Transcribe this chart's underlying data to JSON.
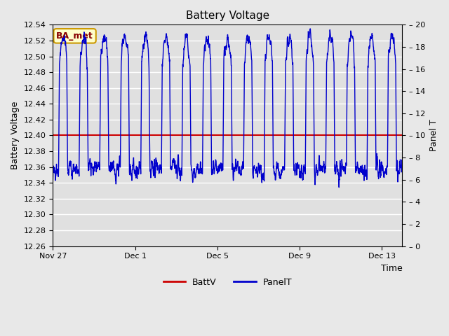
{
  "title": "Battery Voltage",
  "xlabel": "Time",
  "ylabel_left": "Battery Voltage",
  "ylabel_right": "Panel T",
  "ylim_left": [
    12.26,
    12.54
  ],
  "ylim_right": [
    0,
    20
  ],
  "yticks_left": [
    12.26,
    12.28,
    12.3,
    12.32,
    12.34,
    12.36,
    12.38,
    12.4,
    12.42,
    12.44,
    12.46,
    12.48,
    12.5,
    12.52,
    12.54
  ],
  "yticks_right": [
    0,
    2,
    4,
    6,
    8,
    10,
    12,
    14,
    16,
    18,
    20
  ],
  "batt_v": 12.4,
  "batt_color": "#cc0000",
  "panel_color": "#0000cc",
  "bg_color": "#e8e8e8",
  "plot_bg_color": "#e0e0e0",
  "grid_color": "#ffffff",
  "annotation_text": "BA_met",
  "annotation_bg": "#ffffcc",
  "annotation_border": "#cc9900",
  "annotation_text_color": "#880000",
  "legend_items": [
    "BattV",
    "PanelT"
  ],
  "x_tick_labels": [
    "Nov 27",
    "Dec 1",
    "Dec 5",
    "Dec 9",
    "Dec 13"
  ],
  "x_tick_positions": [
    0,
    4,
    8,
    12,
    16
  ]
}
